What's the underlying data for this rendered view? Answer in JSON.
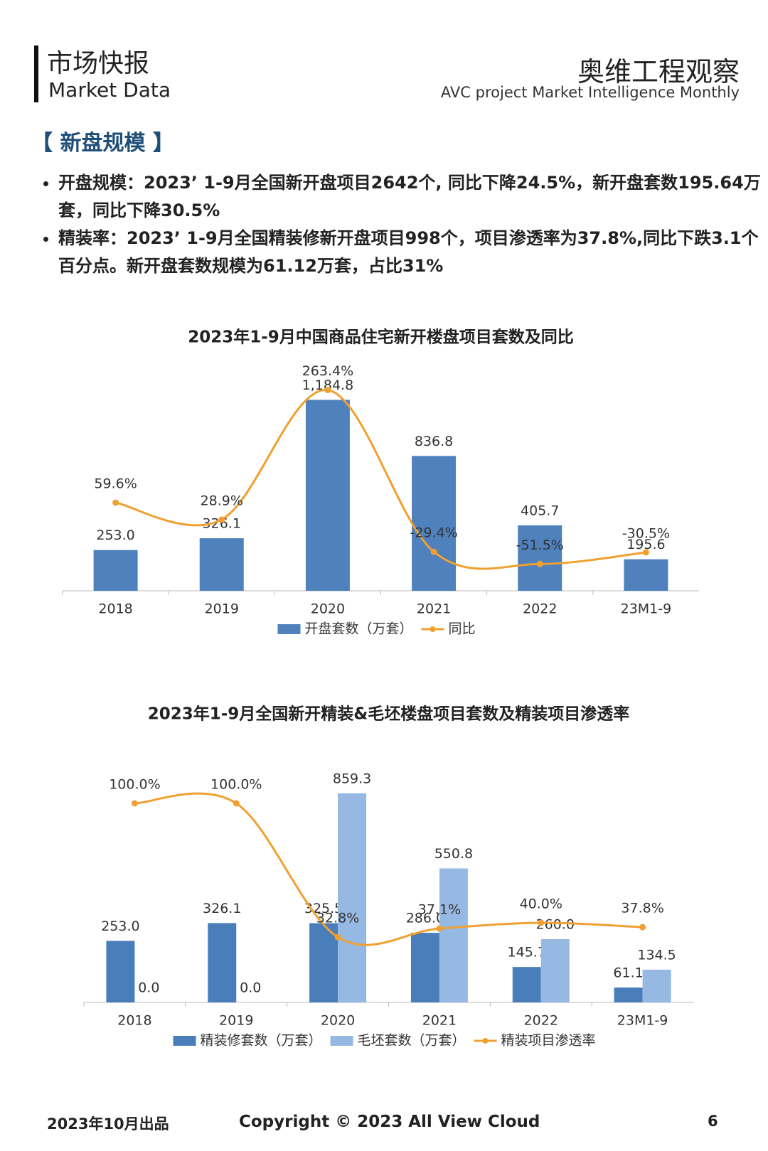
{
  "header": {
    "title": "市场快报",
    "subtitle": "Market Data",
    "brand": "奥维工程观察",
    "brand_en": "AVC  project Market Intelligence Monthly"
  },
  "section": {
    "title": "【 新盘规模 】",
    "bullets": [
      "开盘规模：2023’ 1-9月全国新开盘项目2642个, 同比下降24.5%，新开盘套数195.64万套，同比下降30.5%",
      "精装率：2023’ 1-9月全国精装修新开盘项目998个，项目渗透率为37.8%,同比下跌3.1个百分点。新开盘套数规模为61.12万套，占比31%"
    ]
  },
  "chart_data": [
    {
      "type": "bar",
      "title": "2023年1-9月中国商品住宅新开楼盘项目套数及同比",
      "categories": [
        "2018",
        "2019",
        "2020",
        "2021",
        "2022",
        "23M1-9"
      ],
      "ylim": [
        0,
        1200
      ],
      "y2lim": [
        -100,
        250
      ],
      "series": [
        {
          "name": "开盘套数（万套）",
          "type": "bar",
          "color": "#4f81bd",
          "values": [
            253.0,
            326.1,
            1184.8,
            836.8,
            405.7,
            195.6
          ],
          "value_labels": [
            "253.0",
            "326.1",
            "1,184.8",
            "836.8",
            "405.7",
            "195.6"
          ]
        },
        {
          "name": "同比",
          "type": "line",
          "axis": "y2",
          "color": "#f0a030",
          "values": [
            59.6,
            28.9,
            263.4,
            -29.4,
            -51.5,
            -30.5
          ],
          "value_labels": [
            "59.6%",
            "28.9%",
            "263.4%",
            "-29.4%",
            "-51.5%",
            "-30.5%"
          ]
        }
      ]
    },
    {
      "type": "bar",
      "title": "2023年1-9月全国新开精装&毛坯楼盘项目套数及精装项目渗透率",
      "categories": [
        "2018",
        "2019",
        "2020",
        "2021",
        "2022",
        "23M1-9"
      ],
      "ylim": [
        0,
        900
      ],
      "y2lim": [
        0,
        110
      ],
      "series": [
        {
          "name": "精装修套数（万套）",
          "type": "bar",
          "color": "#4a7ebb",
          "values": [
            253.0,
            326.1,
            325.5,
            286.0,
            145.7,
            61.1
          ],
          "value_labels": [
            "253.0",
            "326.1",
            "325.5",
            "286.0",
            "145.7",
            "61.1"
          ]
        },
        {
          "name": "毛坯套数（万套）",
          "type": "bar",
          "color": "#95b9e3",
          "values": [
            0.0,
            0.0,
            859.3,
            550.8,
            260.0,
            134.5
          ],
          "value_labels": [
            "0.0",
            "0.0",
            "859.3",
            "550.8",
            "260.0",
            "134.5"
          ]
        },
        {
          "name": "精装项目渗透率",
          "type": "line",
          "axis": "y2",
          "color": "#f0a030",
          "values": [
            100.0,
            100.0,
            32.8,
            37.1,
            40.0,
            37.8
          ],
          "value_labels": [
            "100.0%",
            "100.0%",
            "32.8%",
            "37.1%",
            "40.0%",
            "37.8%"
          ]
        }
      ]
    }
  ],
  "footer": {
    "date": "2023年10月出品",
    "copyright": "Copyright © 2023  All View Cloud",
    "page": "6"
  }
}
